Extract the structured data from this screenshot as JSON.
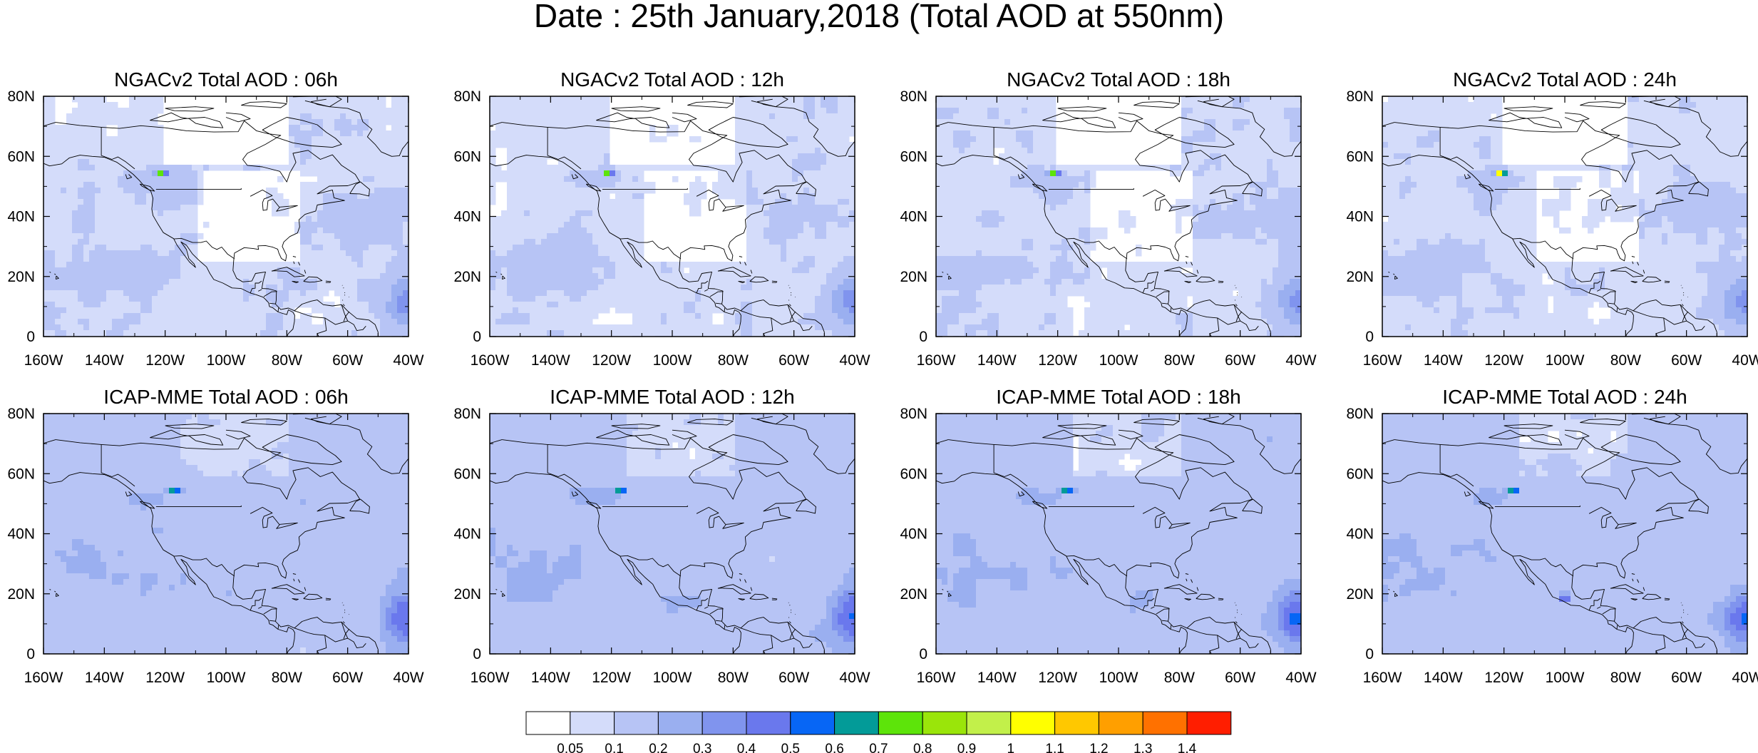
{
  "title": "Date : 25th January,2018 (Total AOD at 550nm)",
  "panels": [
    {
      "title": "NGACv2 Total AOD : 06h",
      "model": "ngac",
      "hour": 6
    },
    {
      "title": "NGACv2 Total AOD : 12h",
      "model": "ngac",
      "hour": 12
    },
    {
      "title": "NGACv2 Total AOD : 18h",
      "model": "ngac",
      "hour": 18
    },
    {
      "title": "NGACv2 Total AOD : 24h",
      "model": "ngac",
      "hour": 24
    },
    {
      "title": "ICAP-MME Total AOD : 06h",
      "model": "icap",
      "hour": 6
    },
    {
      "title": "ICAP-MME Total AOD : 12h",
      "model": "icap",
      "hour": 12
    },
    {
      "title": "ICAP-MME Total AOD : 18h",
      "model": "icap",
      "hour": 18
    },
    {
      "title": "ICAP-MME Total AOD : 24h",
      "model": "icap",
      "hour": 24
    }
  ],
  "axes": {
    "lon_range": [
      -160,
      -40
    ],
    "lat_range": [
      0,
      80
    ],
    "lon_ticks": [
      {
        "value": -160,
        "label": "160W"
      },
      {
        "value": -140,
        "label": "140W"
      },
      {
        "value": -120,
        "label": "120W"
      },
      {
        "value": -100,
        "label": "100W"
      },
      {
        "value": -80,
        "label": "80W"
      },
      {
        "value": -60,
        "label": "60W"
      },
      {
        "value": -40,
        "label": "40W"
      }
    ],
    "lat_ticks": [
      {
        "value": 0,
        "label": "0"
      },
      {
        "value": 20,
        "label": "20N"
      },
      {
        "value": 40,
        "label": "40N"
      },
      {
        "value": 60,
        "label": "60N"
      },
      {
        "value": 80,
        "label": "80N"
      }
    ]
  },
  "colorbar": {
    "labels": [
      "0.05",
      "0.1",
      "0.2",
      "0.3",
      "0.4",
      "0.5",
      "0.6",
      "0.7",
      "0.8",
      "0.9",
      "1",
      "1.1",
      "1.2",
      "1.3",
      "1.4"
    ],
    "colors": [
      "#ffffff",
      "#d4dcfa",
      "#b7c4f5",
      "#9aaff0",
      "#8094ee",
      "#6a78ed",
      "#0766f5",
      "#039b98",
      "#5de40a",
      "#9ae50a",
      "#c2f04a",
      "#ffff00",
      "#ffc800",
      "#ff9f00",
      "#ff7100",
      "#ff1e00"
    ]
  }
}
